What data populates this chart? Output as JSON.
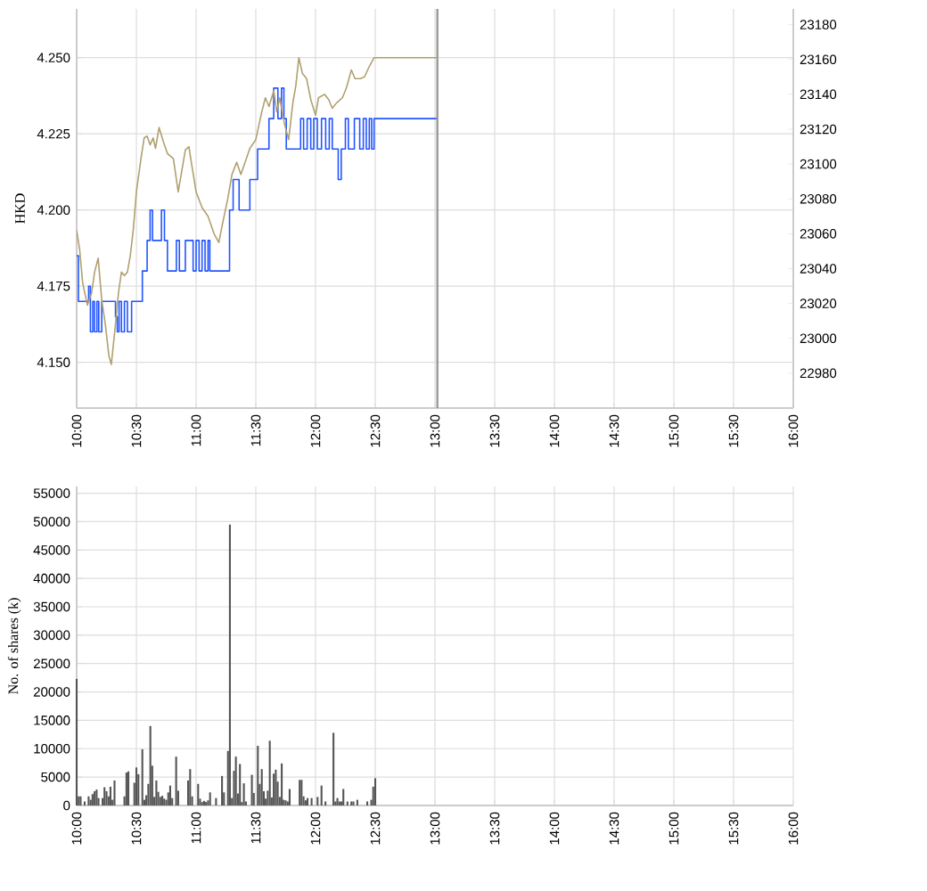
{
  "chart_data": [
    {
      "type": "line",
      "ylabel": "HKD",
      "grid": true,
      "xlim": [
        10,
        16
      ],
      "xticks": [
        {
          "value": 10,
          "label": "10:00"
        },
        {
          "value": 10.5,
          "label": "10:30"
        },
        {
          "value": 11,
          "label": "11:00"
        },
        {
          "value": 11.5,
          "label": "11:30"
        },
        {
          "value": 12,
          "label": "12:00"
        },
        {
          "value": 12.5,
          "label": "12:30"
        },
        {
          "value": 13,
          "label": "13:00"
        },
        {
          "value": 13.5,
          "label": "13:30"
        },
        {
          "value": 14,
          "label": "14:00"
        },
        {
          "value": 14.5,
          "label": "14:30"
        },
        {
          "value": 15,
          "label": "15:00"
        },
        {
          "value": 15.5,
          "label": "15:30"
        },
        {
          "value": 16,
          "label": "16:00"
        }
      ],
      "ylim": [
        4.135,
        4.266
      ],
      "yticks": [
        {
          "value": 4.15,
          "label": "4.150"
        },
        {
          "value": 4.175,
          "label": "4.175"
        },
        {
          "value": 4.2,
          "label": "4.200"
        },
        {
          "value": 4.225,
          "label": "4.225"
        },
        {
          "value": 4.25,
          "label": "4.250"
        }
      ],
      "y2lim": [
        22960,
        23189
      ],
      "y2ticks": [
        22980,
        23000,
        23020,
        23040,
        23060,
        23080,
        23100,
        23120,
        23140,
        23160,
        23180
      ],
      "ref_lines": [
        {
          "axis": "x",
          "value": 13.02,
          "color": "#999999"
        }
      ],
      "series": [
        {
          "type": "step",
          "color": "#2255ff",
          "x": [
            10,
            10.015,
            10.1,
            10.115,
            10.135,
            10.15,
            10.17,
            10.185,
            10.21,
            10.325,
            10.34,
            10.355,
            10.375,
            10.4,
            10.425,
            10.46,
            10.55,
            10.59,
            10.615,
            10.635,
            10.71,
            10.735,
            10.76,
            10.835,
            10.86,
            10.91,
            10.975,
            11.0,
            11.025,
            11.05,
            11.075,
            11.1,
            11.115,
            11.28,
            11.31,
            11.36,
            11.45,
            11.515,
            11.61,
            11.65,
            11.685,
            11.715,
            11.735,
            11.755,
            11.875,
            11.9,
            11.93,
            11.96,
            11.985,
            12.015,
            12.05,
            12.085,
            12.115,
            12.14,
            12.19,
            12.215,
            12.25,
            12.275,
            12.325,
            12.37,
            12.4,
            12.425,
            12.45,
            12.47,
            12.49,
            13.02
          ],
          "values": [
            4.185,
            4.17,
            4.175,
            4.16,
            4.17,
            4.16,
            4.17,
            4.16,
            4.17,
            4.165,
            4.16,
            4.17,
            4.16,
            4.17,
            4.16,
            4.17,
            4.18,
            4.19,
            4.2,
            4.19,
            4.2,
            4.19,
            4.18,
            4.19,
            4.18,
            4.19,
            4.18,
            4.19,
            4.18,
            4.19,
            4.18,
            4.19,
            4.18,
            4.2,
            4.21,
            4.2,
            4.21,
            4.22,
            4.23,
            4.24,
            4.23,
            4.24,
            4.23,
            4.22,
            4.23,
            4.22,
            4.23,
            4.22,
            4.23,
            4.22,
            4.23,
            4.22,
            4.23,
            4.22,
            4.21,
            4.22,
            4.23,
            4.22,
            4.23,
            4.22,
            4.23,
            4.22,
            4.23,
            4.22,
            4.23,
            4.23
          ]
        },
        {
          "type": "line",
          "axis": "y2",
          "color": "#b0a070",
          "x": [
            10,
            10.025,
            10.05,
            10.09,
            10.125,
            10.15,
            10.18,
            10.21,
            10.24,
            10.27,
            10.29,
            10.325,
            10.35,
            10.375,
            10.4,
            10.425,
            10.45,
            10.475,
            10.5,
            10.54,
            10.565,
            10.59,
            10.615,
            10.64,
            10.66,
            10.69,
            10.725,
            10.76,
            10.81,
            10.85,
            10.88,
            10.91,
            10.94,
            10.96,
            11.0,
            11.05,
            11.1,
            11.15,
            11.19,
            11.225,
            11.265,
            11.3,
            11.34,
            11.375,
            11.41,
            11.45,
            11.5,
            11.55,
            11.58,
            11.61,
            11.65,
            11.675,
            11.7,
            11.74,
            11.775,
            11.81,
            11.835,
            11.86,
            11.89,
            11.925,
            11.96,
            12.0,
            12.025,
            12.075,
            12.11,
            12.14,
            12.175,
            12.225,
            12.26,
            12.3,
            12.33,
            12.375,
            12.41,
            12.45,
            12.49,
            13.02
          ],
          "values": [
            23062,
            23051,
            23032,
            23019,
            23026,
            23038,
            23046,
            23022,
            23008,
            22990,
            22985,
            23008,
            23026,
            23038,
            23036,
            23038,
            23048,
            23063,
            23084,
            23104,
            23115,
            23116,
            23111,
            23115,
            23109,
            23121,
            23113,
            23106,
            23103,
            23084,
            23096,
            23108,
            23110,
            23101,
            23084,
            23075,
            23070,
            23060,
            23055,
            23067,
            23080,
            23094,
            23101,
            23094,
            23101,
            23109,
            23114,
            23130,
            23138,
            23133,
            23142,
            23130,
            23138,
            23123,
            23114,
            23135,
            23145,
            23161,
            23152,
            23149,
            23137,
            23128,
            23138,
            23140,
            23137,
            23132,
            23135,
            23138,
            23144,
            23154,
            23149,
            23149,
            23150,
            23156,
            23161,
            23161
          ]
        }
      ]
    },
    {
      "type": "bar",
      "ylabel": "No. of shares (k)",
      "grid": true,
      "color": "#555555",
      "xlim": [
        10,
        16
      ],
      "xticks": [
        {
          "value": 10,
          "label": "10:00"
        },
        {
          "value": 10.5,
          "label": "10:30"
        },
        {
          "value": 11,
          "label": "11:00"
        },
        {
          "value": 11.5,
          "label": "11:30"
        },
        {
          "value": 12,
          "label": "12:00"
        },
        {
          "value": 12.5,
          "label": "12:30"
        },
        {
          "value": 13,
          "label": "13:00"
        },
        {
          "value": 13.5,
          "label": "13:30"
        },
        {
          "value": 14,
          "label": "14:00"
        },
        {
          "value": 14.5,
          "label": "14:30"
        },
        {
          "value": 15,
          "label": "15:00"
        },
        {
          "value": 15.5,
          "label": "15:30"
        },
        {
          "value": 16,
          "label": "16:00"
        }
      ],
      "ylim": [
        0,
        56200
      ],
      "yticks": [
        0,
        5000,
        10000,
        15000,
        20000,
        25000,
        30000,
        35000,
        40000,
        45000,
        50000,
        55000
      ],
      "x": [
        10,
        10.017,
        10.033,
        10.067,
        10.1,
        10.117,
        10.133,
        10.15,
        10.167,
        10.183,
        10.217,
        10.233,
        10.25,
        10.267,
        10.283,
        10.3,
        10.317,
        10.4,
        10.417,
        10.433,
        10.483,
        10.5,
        10.517,
        10.55,
        10.567,
        10.583,
        10.6,
        10.617,
        10.633,
        10.65,
        10.667,
        10.683,
        10.7,
        10.717,
        10.733,
        10.75,
        10.767,
        10.783,
        10.8,
        10.833,
        10.85,
        10.933,
        10.95,
        10.967,
        11.017,
        11.033,
        11.05,
        11.067,
        11.083,
        11.1,
        11.117,
        11.167,
        11.217,
        11.233,
        11.267,
        11.283,
        11.3,
        11.317,
        11.333,
        11.35,
        11.367,
        11.383,
        11.4,
        11.417,
        11.467,
        11.483,
        11.517,
        11.533,
        11.55,
        11.567,
        11.583,
        11.6,
        11.617,
        11.633,
        11.65,
        11.667,
        11.683,
        11.7,
        11.717,
        11.733,
        11.75,
        11.767,
        11.783,
        11.867,
        11.883,
        11.9,
        11.917,
        11.933,
        11.967,
        12.017,
        12.05,
        12.083,
        12.15,
        12.167,
        12.183,
        12.2,
        12.217,
        12.233,
        12.267,
        12.3,
        12.317,
        12.35,
        12.433,
        12.467,
        12.483,
        12.5
      ],
      "values": [
        22300,
        1600,
        1600,
        700,
        1600,
        1000,
        2000,
        2500,
        2800,
        1300,
        1300,
        3200,
        2500,
        1600,
        3300,
        1000,
        4400,
        1600,
        5800,
        6000,
        4000,
        6700,
        5500,
        9900,
        1000,
        1800,
        3800,
        14000,
        7000,
        1500,
        4400,
        2400,
        1500,
        1700,
        1200,
        1000,
        2300,
        3500,
        1300,
        8600,
        2600,
        4400,
        6400,
        1600,
        3800,
        1200,
        600,
        800,
        600,
        900,
        2300,
        1300,
        5200,
        2300,
        9600,
        49500,
        1300,
        6100,
        8600,
        2100,
        7300,
        600,
        3900,
        700,
        5400,
        2200,
        10500,
        3800,
        6400,
        2500,
        1200,
        2600,
        11400,
        1400,
        5600,
        6300,
        4200,
        1500,
        7400,
        1000,
        900,
        700,
        2900,
        4500,
        4500,
        1600,
        900,
        1300,
        1300,
        1500,
        3500,
        700,
        12800,
        700,
        1300,
        700,
        700,
        2900,
        700,
        700,
        700,
        1000,
        700,
        1000,
        3300,
        4800
      ]
    }
  ]
}
